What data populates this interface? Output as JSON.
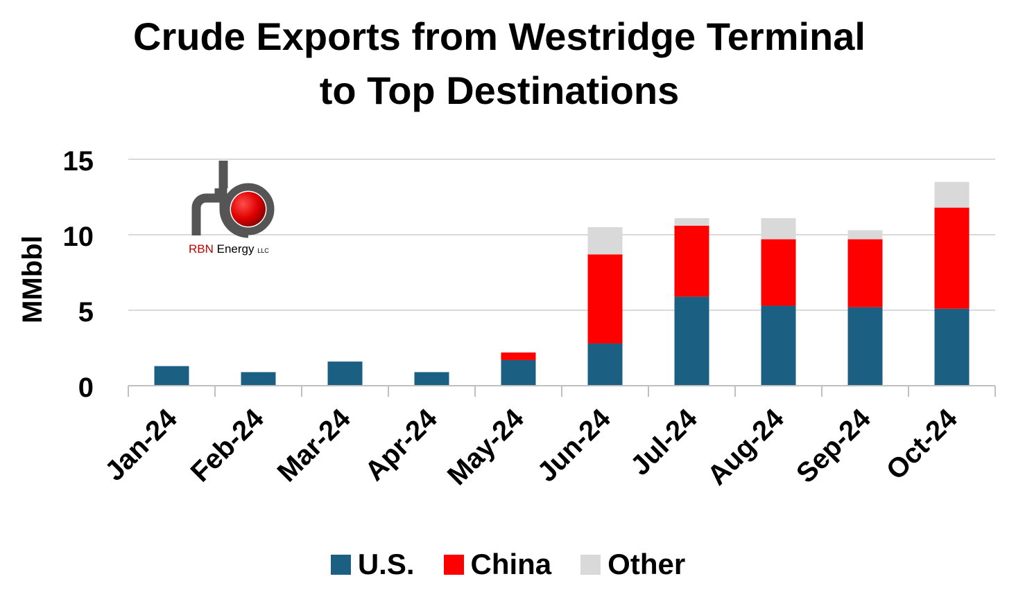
{
  "title_line1": "Crude Exports from Westridge Terminal",
  "title_line2": "to Top Destinations",
  "logo": {
    "brand": "RBN",
    "word": "Energy",
    "suffix": "LLC"
  },
  "colors": {
    "us": "#1b5f82",
    "china": "#ff0000",
    "other": "#d9d9d9",
    "grid": "#d9d9d9",
    "axis": "#bfbfbf"
  },
  "chart_data": {
    "type": "bar",
    "stacked": true,
    "title": "Crude Exports from Westridge Terminal to Top Destinations",
    "xlabel": "",
    "ylabel": "MMbbl",
    "ylim": [
      0,
      15
    ],
    "yticks": [
      0,
      5,
      10,
      15
    ],
    "grid": true,
    "legend_position": "bottom",
    "categories": [
      "Jan-24",
      "Feb-24",
      "Mar-24",
      "Apr-24",
      "May-24",
      "Jun-24",
      "Jul-24",
      "Aug-24",
      "Sep-24",
      "Oct-24"
    ],
    "series": [
      {
        "name": "U.S.",
        "color": "#1b5f82",
        "values": [
          1.3,
          0.9,
          1.6,
          0.9,
          1.7,
          2.8,
          5.9,
          5.3,
          5.2,
          5.1
        ]
      },
      {
        "name": "China",
        "color": "#ff0000",
        "values": [
          0,
          0,
          0,
          0,
          0.5,
          5.9,
          4.7,
          4.4,
          4.5,
          6.7
        ]
      },
      {
        "name": "Other",
        "color": "#d9d9d9",
        "values": [
          0,
          0,
          0,
          0,
          0,
          1.8,
          0.5,
          1.4,
          0.6,
          1.7
        ]
      }
    ]
  }
}
